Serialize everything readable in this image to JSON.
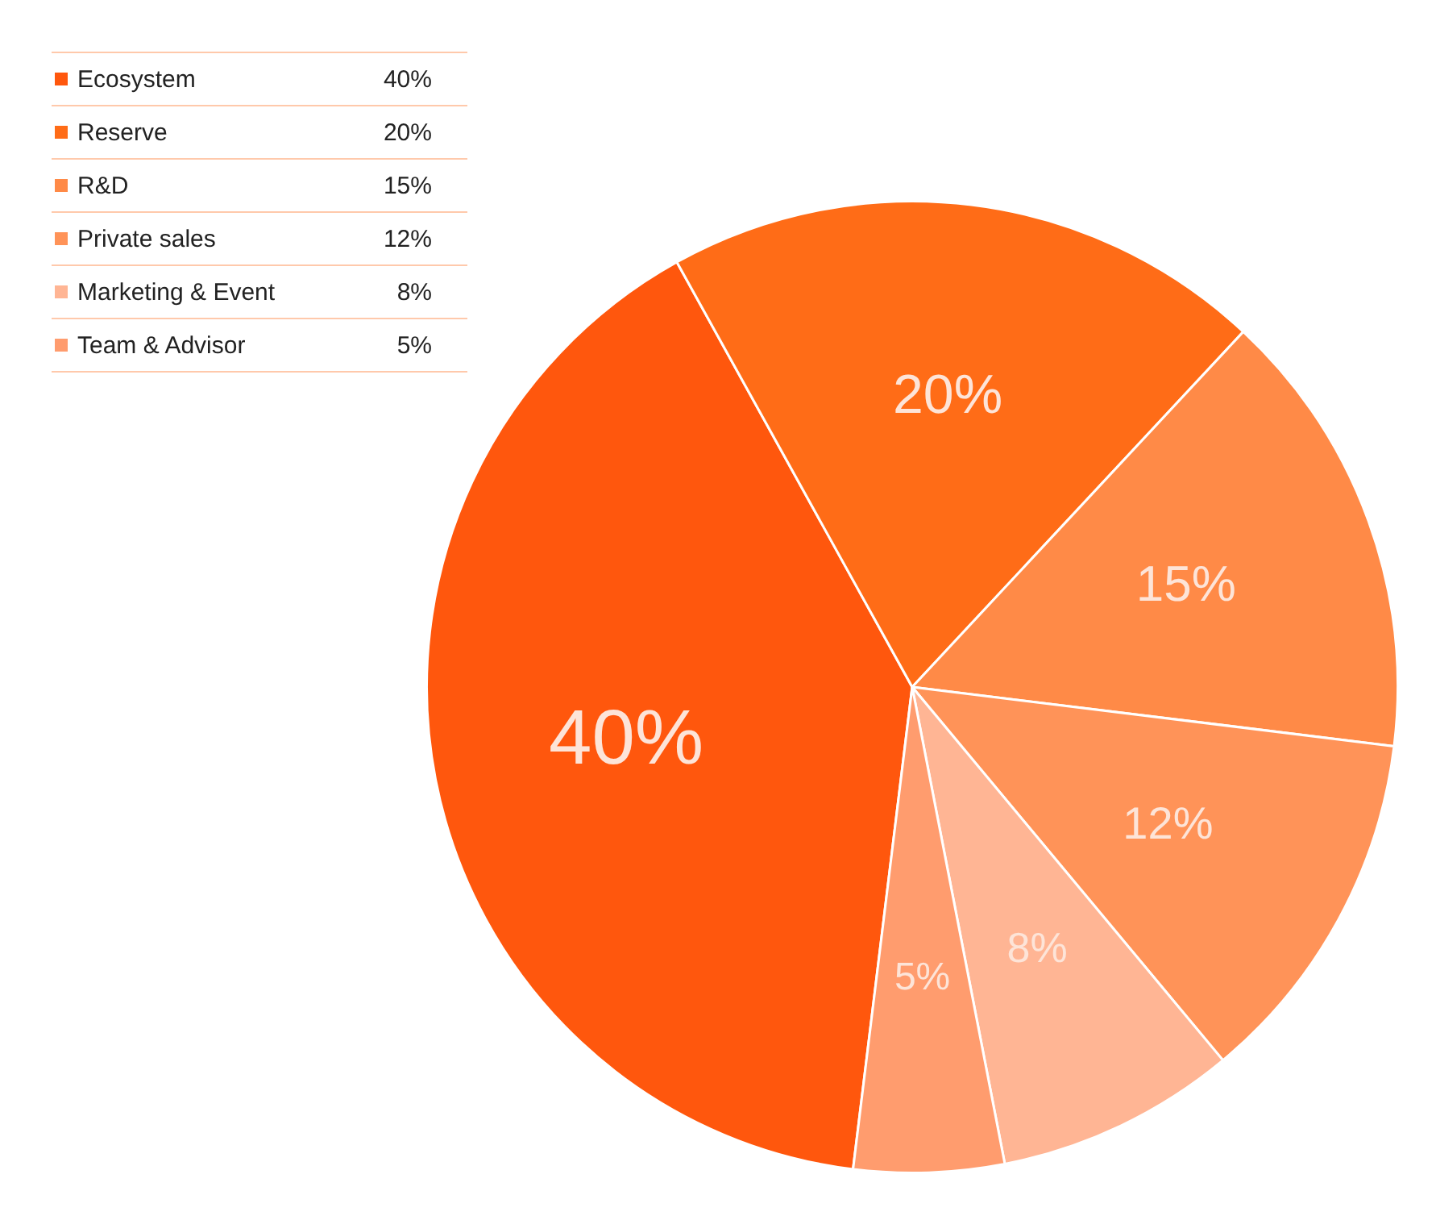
{
  "chart_data": {
    "type": "pie",
    "categories": [
      "Ecosystem",
      "Reserve",
      "R&D",
      "Private sales",
      "Marketing & Event",
      "Team & Advisor"
    ],
    "values": [
      40,
      20,
      15,
      12,
      8,
      5
    ],
    "colors": [
      "#ff570d",
      "#ff6c17",
      "#ff8a47",
      "#ff9358",
      "#ffb594",
      "#ff9c6e"
    ],
    "value_labels": [
      "40%",
      "20%",
      "15%",
      "12%",
      "8%",
      "5%"
    ],
    "legend": "top left"
  }
}
